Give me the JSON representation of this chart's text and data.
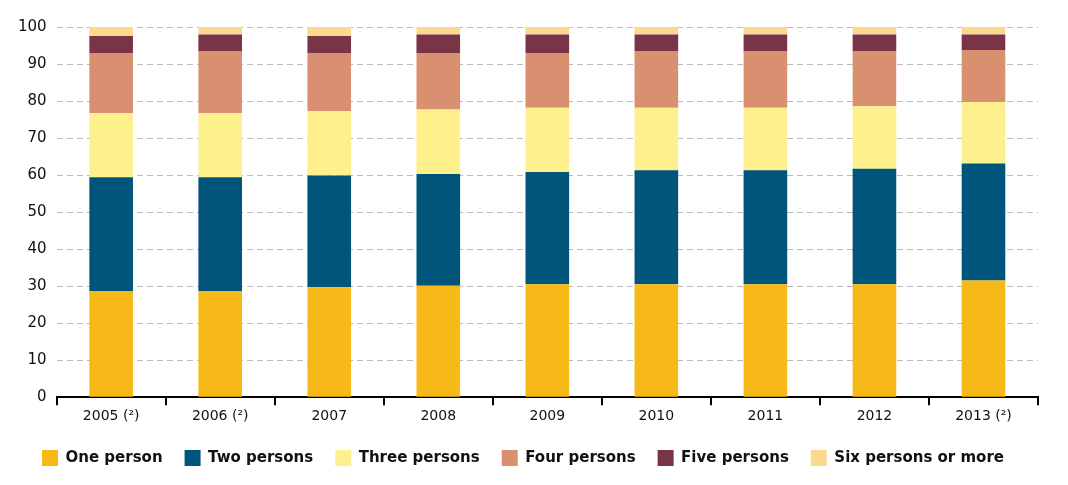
{
  "chart_data": {
    "type": "bar",
    "stacked": true,
    "categories": [
      "2005 (²)",
      "2006 (²)",
      "2007",
      "2008",
      "2009",
      "2010",
      "2011",
      "2012",
      "2013 (²)"
    ],
    "series": [
      {
        "name": "One person",
        "color": "#f7b917",
        "values": [
          28.7,
          28.7,
          29.7,
          30.1,
          30.5,
          30.5,
          30.5,
          30.5,
          31.5
        ]
      },
      {
        "name": "Two persons",
        "color": "#02557a",
        "values": [
          30.7,
          30.7,
          30.2,
          30.2,
          30.3,
          30.8,
          30.8,
          31.2,
          31.6
        ]
      },
      {
        "name": "Three persons",
        "color": "#fef08c",
        "values": [
          17.4,
          17.4,
          17.4,
          17.4,
          17.4,
          16.9,
          16.9,
          16.9,
          16.6
        ]
      },
      {
        "name": "Four persons",
        "color": "#d89070",
        "values": [
          16.2,
          16.6,
          15.7,
          15.3,
          14.8,
          15.2,
          15.2,
          14.8,
          14.1
        ]
      },
      {
        "name": "Five persons",
        "color": "#7a3448",
        "values": [
          4.6,
          4.6,
          4.6,
          5.0,
          5.0,
          4.6,
          4.6,
          4.6,
          4.2
        ]
      },
      {
        "name": "Six persons or more",
        "color": "#fdd98f",
        "values": [
          2.4,
          2.0,
          2.4,
          2.0,
          2.0,
          2.0,
          2.0,
          2.0,
          2.0
        ]
      }
    ],
    "ylim": [
      0,
      100
    ],
    "yticks": [
      0,
      10,
      20,
      30,
      40,
      50,
      60,
      70,
      80,
      90,
      100
    ],
    "grid": "y",
    "legend": "bottom"
  }
}
